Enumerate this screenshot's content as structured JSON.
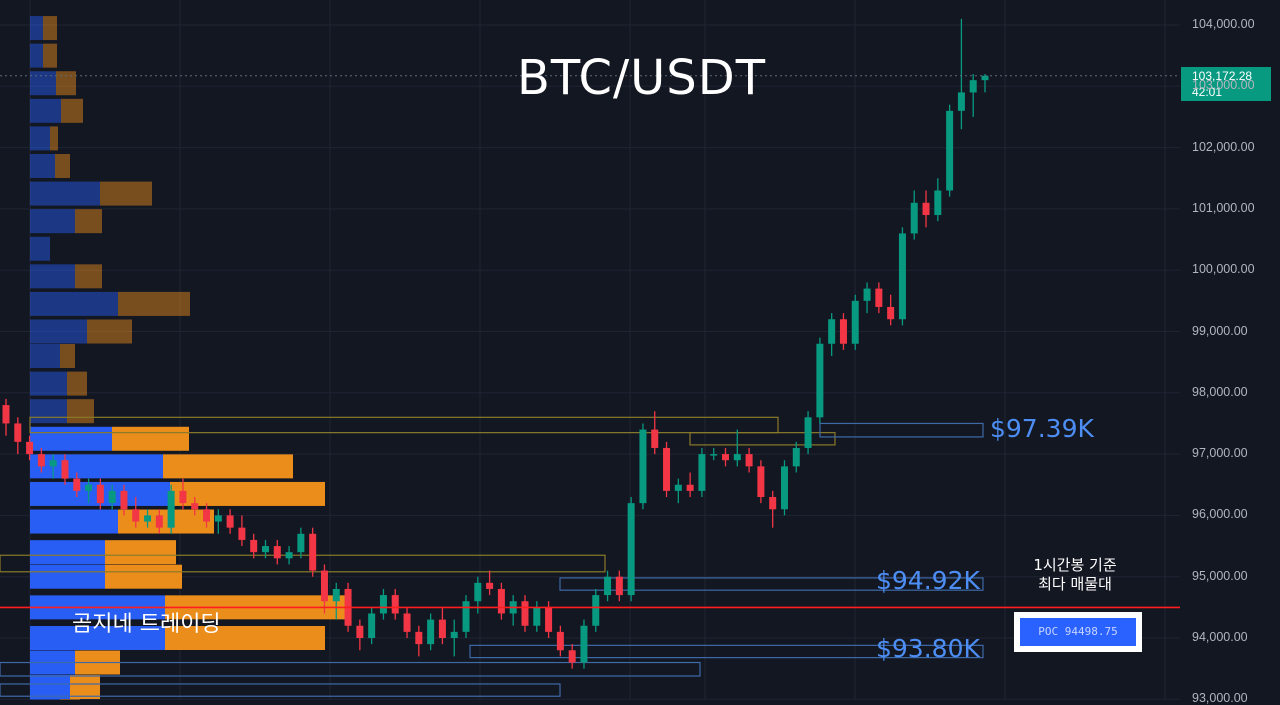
{
  "chart_data": {
    "type": "candlestick",
    "title": "BTC/USDT",
    "ylim": [
      92000,
      104400
    ],
    "y_ticks": [
      "93,000.00",
      "94,000.00",
      "95,000.00",
      "96,000.00",
      "97,000.00",
      "98,000.00",
      "99,000.00",
      "100,000.00",
      "101,000.00",
      "102,000.00",
      "103,000.00",
      "104,000.00"
    ],
    "last_price": {
      "price": "103,172.28",
      "countdown": "42:01"
    },
    "candles": [
      [
        97800,
        97900,
        97300,
        97500
      ],
      [
        97500,
        97600,
        97000,
        97200
      ],
      [
        97200,
        97300,
        96900,
        97000
      ],
      [
        97000,
        97100,
        96700,
        96800
      ],
      [
        96800,
        97000,
        96600,
        96900
      ],
      [
        96900,
        97000,
        96500,
        96600
      ],
      [
        96600,
        96700,
        96300,
        96400
      ],
      [
        96400,
        96600,
        96200,
        96500
      ],
      [
        96500,
        96600,
        96100,
        96200
      ],
      [
        96200,
        96500,
        96100,
        96400
      ],
      [
        96400,
        96500,
        96000,
        96100
      ],
      [
        96100,
        96300,
        95800,
        95900
      ],
      [
        95900,
        96100,
        95800,
        96000
      ],
      [
        96000,
        96100,
        95700,
        95800
      ],
      [
        95800,
        96500,
        95700,
        96400
      ],
      [
        96400,
        96600,
        96100,
        96200
      ],
      [
        96200,
        96300,
        96000,
        96100
      ],
      [
        96100,
        96200,
        95800,
        95900
      ],
      [
        95900,
        96100,
        95700,
        96000
      ],
      [
        96000,
        96100,
        95700,
        95800
      ],
      [
        95800,
        96000,
        95500,
        95600
      ],
      [
        95600,
        95700,
        95300,
        95400
      ],
      [
        95400,
        95600,
        95300,
        95500
      ],
      [
        95500,
        95600,
        95200,
        95300
      ],
      [
        95300,
        95500,
        95200,
        95400
      ],
      [
        95400,
        95800,
        95300,
        95700
      ],
      [
        95700,
        95800,
        95000,
        95100
      ],
      [
        95100,
        95200,
        94400,
        94600
      ],
      [
        94600,
        94900,
        94300,
        94800
      ],
      [
        94800,
        94900,
        94100,
        94200
      ],
      [
        94200,
        94300,
        93800,
        94000
      ],
      [
        94000,
        94500,
        93900,
        94400
      ],
      [
        94400,
        94800,
        94300,
        94700
      ],
      [
        94700,
        94800,
        94300,
        94400
      ],
      [
        94400,
        94500,
        94000,
        94100
      ],
      [
        94100,
        94200,
        93700,
        93900
      ],
      [
        93900,
        94400,
        93800,
        94300
      ],
      [
        94300,
        94500,
        93900,
        94000
      ],
      [
        94000,
        94300,
        93700,
        94100
      ],
      [
        94100,
        94700,
        94000,
        94600
      ],
      [
        94600,
        95000,
        94400,
        94900
      ],
      [
        94900,
        95100,
        94700,
        94800
      ],
      [
        94800,
        94900,
        94300,
        94400
      ],
      [
        94400,
        94700,
        94200,
        94600
      ],
      [
        94600,
        94700,
        94100,
        94200
      ],
      [
        94200,
        94600,
        94100,
        94500
      ],
      [
        94500,
        94600,
        94000,
        94100
      ],
      [
        94100,
        94200,
        93700,
        93800
      ],
      [
        93800,
        93900,
        93500,
        93600
      ],
      [
        93600,
        94300,
        93500,
        94200
      ],
      [
        94200,
        94800,
        94100,
        94700
      ],
      [
        94700,
        95100,
        94600,
        95000
      ],
      [
        95000,
        95100,
        94600,
        94700
      ],
      [
        94700,
        96300,
        94600,
        96200
      ],
      [
        96200,
        97500,
        96100,
        97400
      ],
      [
        97400,
        97700,
        97000,
        97100
      ],
      [
        97100,
        97200,
        96300,
        96400
      ],
      [
        96400,
        96600,
        96200,
        96500
      ],
      [
        96500,
        96700,
        96300,
        96400
      ],
      [
        96400,
        97100,
        96300,
        97000
      ],
      [
        97000,
        97100,
        96900,
        97000
      ],
      [
        97000,
        97100,
        96800,
        96900
      ],
      [
        96900,
        97400,
        96800,
        97000
      ],
      [
        97000,
        97100,
        96700,
        96800
      ],
      [
        96800,
        96900,
        96200,
        96300
      ],
      [
        96300,
        96400,
        95800,
        96100
      ],
      [
        96100,
        96900,
        96000,
        96800
      ],
      [
        96800,
        97200,
        96700,
        97100
      ],
      [
        97100,
        97700,
        97000,
        97600
      ],
      [
        97600,
        98900,
        97500,
        98800
      ],
      [
        98800,
        99300,
        98600,
        99200
      ],
      [
        99200,
        99300,
        98700,
        98800
      ],
      [
        98800,
        99600,
        98700,
        99500
      ],
      [
        99500,
        99800,
        99300,
        99700
      ],
      [
        99700,
        99800,
        99300,
        99400
      ],
      [
        99400,
        99600,
        99100,
        99200
      ],
      [
        99200,
        100700,
        99100,
        100600
      ],
      [
        100600,
        101300,
        100500,
        101100
      ],
      [
        101100,
        101300,
        100700,
        100900
      ],
      [
        100900,
        101500,
        100800,
        101300
      ],
      [
        101300,
        102700,
        101200,
        102600
      ],
      [
        102600,
        104100,
        102300,
        102900
      ],
      [
        102900,
        103200,
        102500,
        103100
      ],
      [
        103100,
        103200,
        102900,
        103172
      ]
    ],
    "volume_profile": [
      {
        "price": 92800,
        "buy": 30,
        "sell": 20
      },
      {
        "price": 93200,
        "buy": 40,
        "sell": 30
      },
      {
        "price": 93600,
        "buy": 45,
        "sell": 45
      },
      {
        "price": 94000,
        "buy": 135,
        "sell": 160
      },
      {
        "price": 94500,
        "buy": 135,
        "sell": 185
      },
      {
        "price": 95000,
        "buy": 75,
        "sell": 77
      },
      {
        "price": 95400,
        "buy": 75,
        "sell": 71
      },
      {
        "price": 95900,
        "buy": 88,
        "sell": 96
      },
      {
        "price": 96350,
        "buy": 140,
        "sell": 155
      },
      {
        "price": 96800,
        "buy": 133,
        "sell": 130
      },
      {
        "price": 97250,
        "buy": 82,
        "sell": 77
      },
      {
        "price": 97700,
        "buy": 37,
        "sell": 27
      },
      {
        "price": 98150,
        "buy": 37,
        "sell": 20
      },
      {
        "price": 98600,
        "buy": 30,
        "sell": 15
      },
      {
        "price": 99000,
        "buy": 57,
        "sell": 45
      },
      {
        "price": 99450,
        "buy": 88,
        "sell": 72
      },
      {
        "price": 99900,
        "buy": 45,
        "sell": 27
      },
      {
        "price": 100350,
        "buy": 20,
        "sell": 0
      },
      {
        "price": 100800,
        "buy": 45,
        "sell": 27
      },
      {
        "price": 101250,
        "buy": 70,
        "sell": 52
      },
      {
        "price": 101700,
        "buy": 25,
        "sell": 15
      },
      {
        "price": 102150,
        "buy": 20,
        "sell": 8
      },
      {
        "price": 102600,
        "buy": 31,
        "sell": 22
      },
      {
        "price": 103050,
        "buy": 26,
        "sell": 20
      },
      {
        "price": 103500,
        "buy": 13,
        "sell": 14
      },
      {
        "price": 103950,
        "buy": 13,
        "sell": 14
      }
    ],
    "levels": [
      {
        "price": 97390,
        "label": "$97.39K"
      },
      {
        "price": 94920,
        "label": "$94.92K"
      },
      {
        "price": 93800,
        "label": "$93.80K"
      }
    ],
    "poc": {
      "price": 94498.75,
      "label": "POC  94498.75"
    },
    "annotations": {
      "watermark": "곰지네 트레이딩",
      "poc_note_line1": "1시간봉 기준",
      "poc_note_line2": "최다 매물대"
    },
    "colors": {
      "background": "#131722",
      "up": "#089981",
      "down": "#f23645",
      "buy": "#2962ff",
      "sell": "#f7931a",
      "level": "#4d8ef5",
      "poc": "#ff1e1e"
    }
  }
}
